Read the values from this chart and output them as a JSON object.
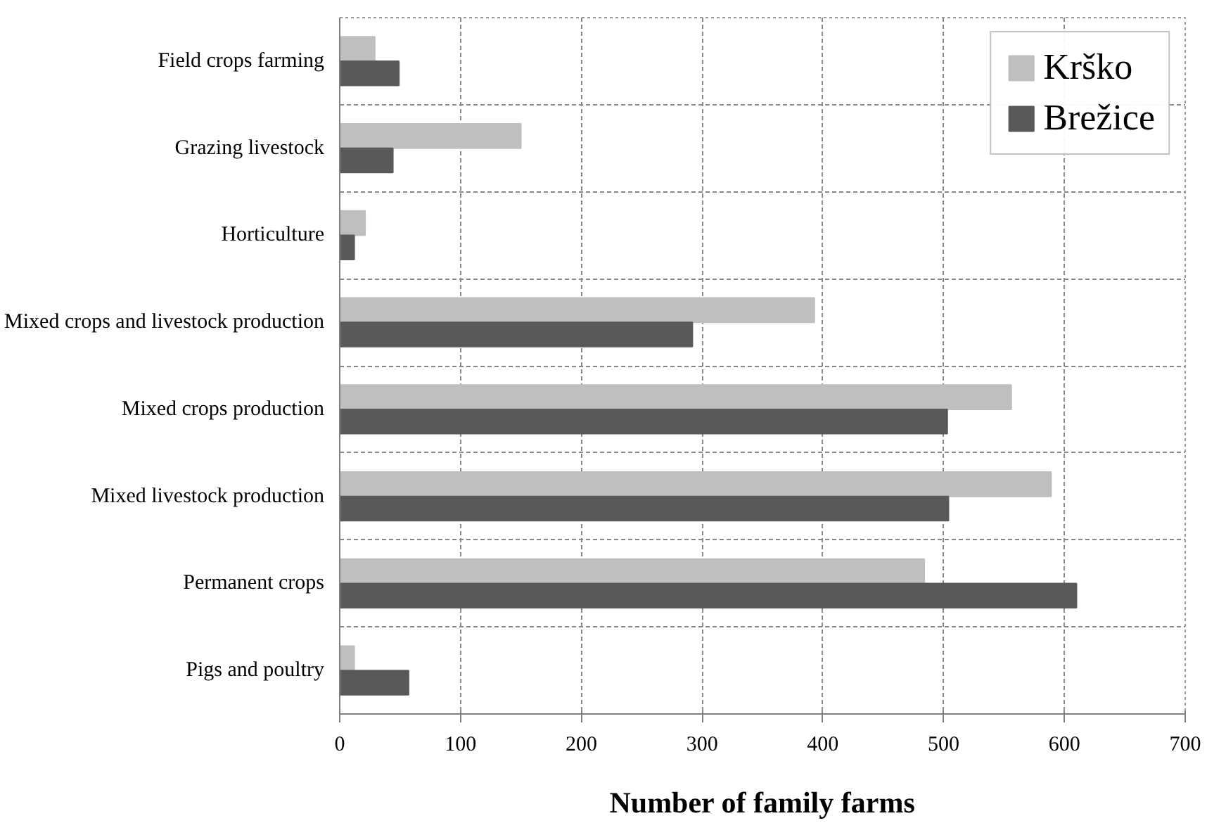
{
  "chart_data": {
    "type": "bar",
    "orientation": "horizontal",
    "xlabel": "Number of family farms",
    "categories": [
      "Field crops farming",
      "Grazing livestock",
      "Horticulture",
      "Mixed crops and livestock production",
      "Mixed crops production",
      "Mixed livestock production",
      "Permanent crops",
      "Pigs and poultry"
    ],
    "series": [
      {
        "name": "Krško",
        "color": "#bfbfbf",
        "values": [
          29,
          150,
          21,
          393,
          556,
          589,
          484,
          12
        ]
      },
      {
        "name": "Brežice",
        "color": "#595959",
        "values": [
          49,
          44,
          12,
          292,
          503,
          504,
          610,
          57
        ]
      }
    ],
    "xlim": [
      0,
      700
    ],
    "xticks": [
      0,
      100,
      200,
      300,
      400,
      500,
      600,
      700
    ],
    "grid": true,
    "legend": "top right"
  }
}
